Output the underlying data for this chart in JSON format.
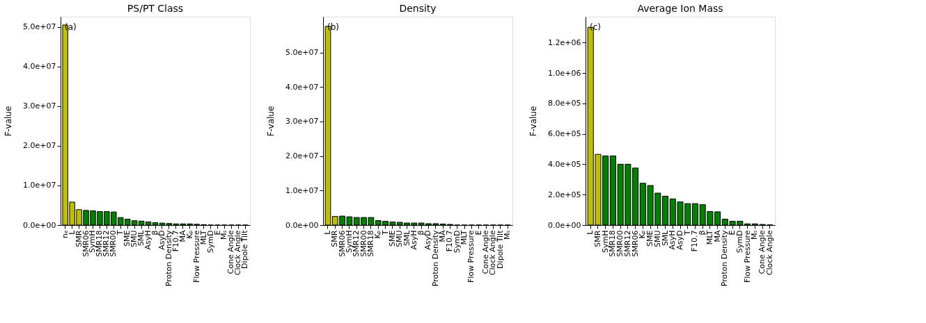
{
  "chart_data": [
    {
      "type": "bar",
      "title": "PS/PT Class",
      "ylabel": "F-value",
      "annotations": [
        "(a)"
      ],
      "grid": false,
      "categories": [
        "nₑ",
        "L",
        "SMR",
        "SMR06",
        "SymH",
        "SMR18",
        "SMR12",
        "SMR00",
        "T",
        "SME",
        "SMU",
        "SML",
        "AsyH",
        "β",
        "AsyD",
        "Proton Density",
        "F10.7",
        "MA",
        "Kₚ",
        "Flow Pressure",
        "MLT",
        "SymD",
        "E",
        "Mₛ",
        "Cone Angle",
        "Clock Angle",
        "Dipole Tilt"
      ],
      "values": [
        50500000,
        5800000,
        3900000,
        3700000,
        3600000,
        3400000,
        3400000,
        3300000,
        1900000,
        1500000,
        1100000,
        1000000,
        800000,
        600000,
        500000,
        400000,
        300000,
        300000,
        300000,
        200000,
        100000,
        0,
        0,
        0,
        0,
        0,
        0
      ],
      "colors": [
        "#bfbf00",
        "#bfbf00",
        "#bfbf00",
        "#008000",
        "#008000",
        "#008000",
        "#008000",
        "#008000",
        "#008000",
        "#008000",
        "#008000",
        "#008000",
        "#008000",
        "#008000",
        "#008000",
        "#008000",
        "#008000",
        "#008000",
        "#008000",
        "#008000",
        "#008000",
        "#008000",
        "#008000",
        "#008000",
        "#008000",
        "#008000",
        "#008000"
      ],
      "ylim": [
        0,
        52600000
      ],
      "yticks": [
        {
          "value": 0,
          "label": "0.0e+00"
        },
        {
          "value": 10000000,
          "label": "1.0e+07"
        },
        {
          "value": 20000000,
          "label": "2.0e+07"
        },
        {
          "value": 30000000,
          "label": "3.0e+07"
        },
        {
          "value": 40000000,
          "label": "4.0e+07"
        },
        {
          "value": 50000000,
          "label": "5.0e+07"
        }
      ]
    },
    {
      "type": "bar",
      "title": "Density",
      "ylabel": "F-value",
      "annotations": [
        "(b)"
      ],
      "grid": false,
      "categories": [
        "L",
        "SMR",
        "SMR06",
        "SymH",
        "SMR12",
        "SMR00",
        "SMR18",
        "Kₚ",
        "T",
        "SME",
        "SMU",
        "SML",
        "AsyH",
        "β",
        "AsyD",
        "Proton Density",
        "MA",
        "F10.7",
        "SymD",
        "MLT",
        "Flow Pressure",
        "E",
        "Cone Angle",
        "Clock Angle",
        "Dipole Tilt",
        "Mₛ"
      ],
      "values": [
        57600000,
        2500000,
        2600000,
        2400000,
        2200000,
        2200000,
        2200000,
        1300000,
        1100000,
        900000,
        800000,
        600000,
        600000,
        600000,
        400000,
        400000,
        300000,
        200000,
        0,
        0,
        0,
        0,
        0,
        0,
        0,
        0
      ],
      "colors": [
        "#bfbf00",
        "#bfbf00",
        "#008000",
        "#008000",
        "#008000",
        "#008000",
        "#008000",
        "#008000",
        "#008000",
        "#008000",
        "#008000",
        "#008000",
        "#008000",
        "#008000",
        "#008000",
        "#008000",
        "#008000",
        "#008000",
        "#008000",
        "#008000",
        "#008000",
        "#008000",
        "#008000",
        "#008000",
        "#008000",
        "#008000"
      ],
      "ylim": [
        0,
        60400000
      ],
      "yticks": [
        {
          "value": 0,
          "label": "0.0e+00"
        },
        {
          "value": 10000000,
          "label": "1.0e+07"
        },
        {
          "value": 20000000,
          "label": "2.0e+07"
        },
        {
          "value": 30000000,
          "label": "3.0e+07"
        },
        {
          "value": 40000000,
          "label": "4.0e+07"
        },
        {
          "value": 50000000,
          "label": "5.0e+07"
        }
      ]
    },
    {
      "type": "bar",
      "title": "Average Ion Mass",
      "ylabel": "F-value",
      "annotations": [
        "(c)"
      ],
      "grid": false,
      "categories": [
        "L",
        "SMR",
        "SymH",
        "SMR18",
        "SMR00",
        "SMR12",
        "SMR06",
        "Kₚ",
        "SME",
        "SMU",
        "SML",
        "AsyH",
        "AsyD",
        "T",
        "F10.7",
        "β",
        "MLT",
        "MA",
        "Proton Density",
        "E",
        "SymD",
        "Flow Pressure",
        "Mₛ",
        "Cone Angle",
        "Clock Angle"
      ],
      "values": [
        1300000,
        465000,
        455000,
        455000,
        400000,
        400000,
        375000,
        275000,
        260000,
        210000,
        190000,
        172000,
        152000,
        141000,
        141000,
        134000,
        89000,
        87000,
        39000,
        25000,
        25000,
        8000,
        8000,
        4000,
        1000
      ],
      "colors": [
        "#bfbf00",
        "#bfbf00",
        "#008000",
        "#008000",
        "#008000",
        "#008000",
        "#008000",
        "#008000",
        "#008000",
        "#008000",
        "#008000",
        "#008000",
        "#008000",
        "#008000",
        "#008000",
        "#008000",
        "#008000",
        "#008000",
        "#008000",
        "#008000",
        "#008000",
        "#008000",
        "#008000",
        "#008000",
        "#008000"
      ],
      "ylim": [
        0,
        1370000
      ],
      "yticks": [
        {
          "value": 0,
          "label": "0.0e+00"
        },
        {
          "value": 200000,
          "label": "2.0e+05"
        },
        {
          "value": 400000,
          "label": "4.0e+05"
        },
        {
          "value": 600000,
          "label": "6.0e+05"
        },
        {
          "value": 800000,
          "label": "8.0e+05"
        },
        {
          "value": 1000000,
          "label": "1.0e+06"
        },
        {
          "value": 1200000,
          "label": "1.2e+06"
        }
      ]
    }
  ]
}
